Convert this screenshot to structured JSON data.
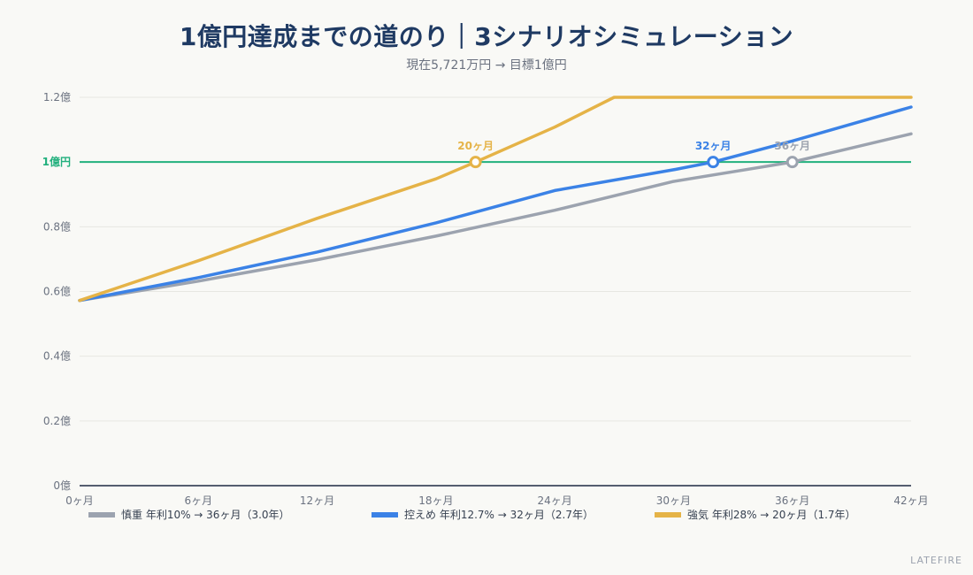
{
  "chart_data": {
    "type": "line",
    "title": "1億円達成までの道のり｜3シナリオシミュレーション",
    "subtitle": "現在5,721万円 → 目標1億円",
    "xlim": [
      0,
      42
    ],
    "ylim": [
      0,
      1.2
    ],
    "x_ticks": [
      0,
      6,
      12,
      18,
      24,
      30,
      36,
      42
    ],
    "x_tick_labels": [
      "0ヶ月",
      "6ヶ月",
      "12ヶ月",
      "18ヶ月",
      "24ヶ月",
      "30ヶ月",
      "36ヶ月",
      "42ヶ月"
    ],
    "y_ticks": [
      0,
      0.2,
      0.4,
      0.6,
      0.8,
      1.2
    ],
    "y_tick_labels": [
      "0億",
      "0.2億",
      "0.4億",
      "0.6億",
      "0.8億",
      "1.2億"
    ],
    "target": {
      "value": 1.0,
      "label": "1億円",
      "color": "#22b07d"
    },
    "grid": true,
    "legend_position": "bottom",
    "series": [
      {
        "name": "慎重 年利10% → 36ヶ月（3.0年）",
        "color": "#9ca3af",
        "x": [
          0,
          6,
          12,
          18,
          24,
          30,
          36,
          42
        ],
        "values": [
          0.572,
          0.632,
          0.698,
          0.771,
          0.851,
          0.94,
          1.0,
          1.087
        ],
        "milestone": {
          "x": 36,
          "y": 1.0,
          "label": "36ヶ月"
        }
      },
      {
        "name": "控えめ 年利12.7% → 32ヶ月（2.7年）",
        "color": "#3b82e6",
        "x": [
          0,
          6,
          12,
          18,
          24,
          30,
          32,
          36,
          42
        ],
        "values": [
          0.572,
          0.643,
          0.722,
          0.812,
          0.912,
          0.976,
          1.0,
          1.065,
          1.17
        ],
        "milestone": {
          "x": 32,
          "y": 1.0,
          "label": "32ヶ月"
        }
      },
      {
        "name": "強気 年利28% → 20ヶ月（1.7年）",
        "color": "#e5b347",
        "x": [
          0,
          6,
          12,
          18,
          20,
          24,
          27,
          42
        ],
        "values": [
          0.572,
          0.695,
          0.826,
          0.948,
          1.0,
          1.108,
          1.2,
          1.2
        ],
        "milestone": {
          "x": 20,
          "y": 1.0,
          "label": "20ヶ月"
        }
      }
    ]
  },
  "footer": {
    "brand": "LATEFIRE"
  }
}
